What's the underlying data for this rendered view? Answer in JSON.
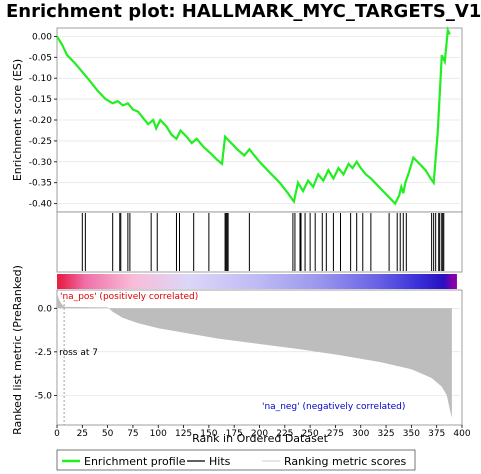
{
  "title": "Enrichment plot: HALLMARK_MYC_TARGETS_V1",
  "chart_data": {
    "type": "line",
    "title": "Enrichment plot: HALLMARK_MYC_TARGETS_V1",
    "es_panel": {
      "ylabel": "Enrichment score (ES)",
      "ylim": [
        -0.42,
        0.02
      ],
      "yticks": [
        0.0,
        -0.05,
        -0.1,
        -0.15,
        -0.2,
        -0.25,
        -0.3,
        -0.35,
        -0.4
      ],
      "ytick_labels": [
        "0.00",
        "-0.05",
        "-0.10",
        "-0.15",
        "-0.20",
        "-0.25",
        "-0.30",
        "-0.35",
        "-0.40"
      ],
      "color": "#22ee22",
      "x": [
        0,
        5,
        10,
        18,
        25,
        32,
        40,
        48,
        55,
        60,
        65,
        70,
        75,
        80,
        85,
        90,
        95,
        98,
        102,
        108,
        113,
        118,
        122,
        128,
        133,
        138,
        145,
        152,
        158,
        163,
        166,
        172,
        178,
        185,
        190,
        195,
        200,
        210,
        220,
        228,
        234,
        238,
        243,
        248,
        253,
        258,
        263,
        268,
        273,
        278,
        283,
        288,
        292,
        296,
        300,
        305,
        310,
        318,
        326,
        334,
        338,
        340,
        342,
        344,
        347,
        352,
        358,
        364,
        369,
        372,
        376,
        380,
        383,
        386,
        388
      ],
      "y": [
        0.0,
        -0.02,
        -0.045,
        -0.065,
        -0.085,
        -0.105,
        -0.13,
        -0.15,
        -0.16,
        -0.155,
        -0.165,
        -0.16,
        -0.175,
        -0.18,
        -0.195,
        -0.21,
        -0.2,
        -0.22,
        -0.2,
        -0.215,
        -0.235,
        -0.245,
        -0.225,
        -0.24,
        -0.255,
        -0.245,
        -0.265,
        -0.28,
        -0.295,
        -0.305,
        -0.24,
        -0.255,
        -0.27,
        -0.285,
        -0.27,
        -0.285,
        -0.3,
        -0.325,
        -0.35,
        -0.375,
        -0.395,
        -0.35,
        -0.37,
        -0.345,
        -0.36,
        -0.33,
        -0.345,
        -0.32,
        -0.34,
        -0.315,
        -0.33,
        -0.305,
        -0.315,
        -0.3,
        -0.315,
        -0.33,
        -0.34,
        -0.36,
        -0.38,
        -0.4,
        -0.38,
        -0.36,
        -0.375,
        -0.35,
        -0.33,
        -0.29,
        -0.305,
        -0.32,
        -0.34,
        -0.35,
        -0.23,
        -0.045,
        -0.06,
        0.015,
        0.005
      ]
    },
    "hits_panel": {
      "positions": [
        25,
        28,
        55,
        62,
        63,
        70,
        72,
        93,
        99,
        118,
        121,
        135,
        150,
        166,
        167,
        168,
        169,
        190,
        233,
        235,
        240,
        241,
        245,
        250,
        255,
        262,
        266,
        273,
        280,
        290,
        296,
        302,
        310,
        328,
        336,
        339,
        342,
        345,
        370,
        372,
        374,
        377,
        378,
        380,
        381,
        382
      ]
    },
    "color_strip": {
      "colors": [
        "#e8204a",
        "#f070a8",
        "#f8bcd8",
        "#dcd6f8",
        "#c0bcf4",
        "#9a96ee",
        "#6a64e6",
        "#3a2fd8",
        "#2810c0",
        "#8800aa"
      ],
      "breaks": [
        0,
        6,
        50,
        100,
        160,
        230,
        290,
        340,
        375,
        388,
        395
      ]
    },
    "metric_panel": {
      "ylabel": "Ranked list metric (PreRanked)",
      "ylim": [
        -6.7,
        1.05
      ],
      "yticks": [
        0.0,
        -2.5,
        -5.0
      ],
      "ytick_labels": [
        "0.0",
        "-2.5",
        "-5.0"
      ],
      "x": [
        0,
        2,
        4,
        6,
        8,
        50,
        55,
        65,
        80,
        100,
        130,
        160,
        200,
        240,
        280,
        320,
        350,
        370,
        380,
        385,
        388,
        390
      ],
      "y": [
        0.9,
        0.5,
        0.3,
        0.15,
        0.08,
        0.05,
        -0.2,
        -0.55,
        -0.85,
        -1.15,
        -1.45,
        -1.75,
        -2.05,
        -2.35,
        -2.7,
        -3.1,
        -3.5,
        -4.0,
        -4.5,
        -5.0,
        -5.8,
        -6.3
      ],
      "fill_color": "#bdbdbd",
      "zero_cross_label": "ross at 7",
      "zero_cross_x": 7,
      "pos_label": "'na_pos' (positively correlated)",
      "neg_label": "'na_neg' (negatively correlated)",
      "pos_color": "#dd0000",
      "neg_color": "#0000cc"
    },
    "xlabel": "Rank in Ordered Dataset",
    "xlim": [
      0,
      400
    ],
    "xticks": [
      0,
      25,
      50,
      75,
      100,
      125,
      150,
      175,
      200,
      225,
      250,
      275,
      300,
      325,
      350,
      375,
      400
    ],
    "legend": {
      "placement": "bottom",
      "items": [
        {
          "label": "Enrichment profile",
          "color": "#22ee22",
          "kind": "thick-line"
        },
        {
          "label": "Hits",
          "color": "#000000",
          "kind": "line"
        },
        {
          "label": "Ranking metric scores",
          "color": "#bdbdbd",
          "kind": "thin-line"
        }
      ]
    }
  }
}
